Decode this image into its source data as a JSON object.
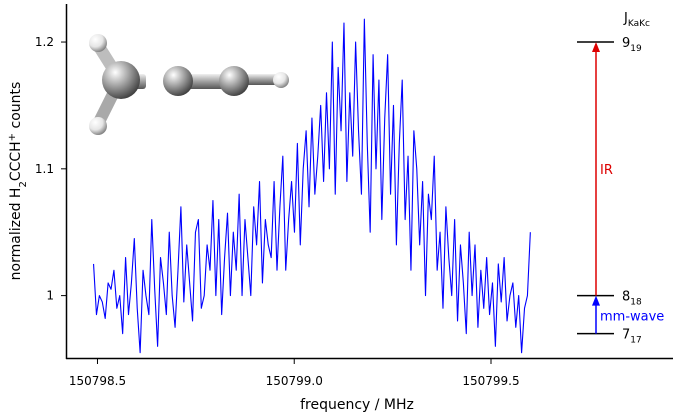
{
  "chart_data": {
    "type": "line",
    "xlabel": "frequency / MHz",
    "ylabel_parts": {
      "pre": "normalized H",
      "sub": "2",
      "mid": "CCCH",
      "sup": "+",
      "post": " counts"
    },
    "xlim": [
      150798.42,
      150799.96
    ],
    "ylim": [
      0.95,
      1.23
    ],
    "xticks": [
      {
        "value": 150798.5,
        "label": "150798.5"
      },
      {
        "value": 150799.0,
        "label": "150799.0"
      },
      {
        "value": 150799.5,
        "label": "150799.5"
      }
    ],
    "yticks": [
      {
        "value": 1.0,
        "label": "1"
      },
      {
        "value": 1.1,
        "label": "1.1"
      },
      {
        "value": 1.2,
        "label": "1.2"
      }
    ],
    "series": [
      {
        "color": "#0000ff",
        "x_start": 150798.49,
        "x_end": 150799.6,
        "values": [
          1.025,
          0.985,
          1.0,
          0.995,
          0.982,
          1.01,
          1.005,
          1.02,
          0.99,
          1.0,
          0.97,
          1.03,
          0.985,
          1.01,
          1.045,
          0.99,
          0.955,
          1.02,
          1.0,
          0.985,
          1.06,
          1.005,
          0.96,
          1.03,
          1.01,
          0.985,
          1.05,
          1.0,
          0.975,
          1.02,
          1.07,
          0.995,
          1.04,
          1.01,
          0.98,
          1.05,
          1.06,
          0.99,
          1.0,
          1.04,
          1.02,
          1.075,
          1.0,
          1.06,
          0.985,
          1.03,
          1.065,
          1.0,
          1.05,
          1.02,
          1.08,
          1.0,
          1.06,
          1.03,
          1.0,
          1.07,
          1.04,
          1.09,
          1.01,
          1.06,
          1.04,
          1.03,
          1.09,
          1.02,
          1.07,
          1.11,
          1.02,
          1.06,
          1.09,
          1.05,
          1.12,
          1.04,
          1.1,
          1.13,
          1.07,
          1.14,
          1.08,
          1.11,
          1.15,
          1.09,
          1.16,
          1.1,
          1.2,
          1.08,
          1.18,
          1.13,
          1.215,
          1.09,
          1.16,
          1.11,
          1.2,
          1.13,
          1.08,
          1.218,
          1.12,
          1.05,
          1.19,
          1.1,
          1.17,
          1.06,
          1.14,
          1.19,
          1.08,
          1.15,
          1.04,
          1.12,
          1.17,
          1.06,
          1.11,
          1.02,
          1.13,
          1.1,
          1.04,
          1.09,
          1.0,
          1.08,
          1.06,
          1.11,
          1.02,
          1.05,
          0.99,
          1.07,
          1.03,
          1.0,
          1.06,
          0.98,
          1.04,
          1.01,
          0.97,
          1.05,
          1.0,
          1.04,
          0.975,
          1.02,
          0.99,
          1.03,
          0.985,
          1.01,
          0.96,
          1.025,
          0.995,
          1.03,
          0.98,
          1.0,
          1.01,
          0.975,
          1.0,
          0.955,
          0.99,
          1.0,
          1.05
        ]
      }
    ],
    "levels": {
      "header": {
        "main": "J",
        "sub": "KaKc"
      },
      "lines": [
        {
          "value": 1.2,
          "main": "9",
          "sub": "19"
        },
        {
          "value": 1.0,
          "main": "8",
          "sub": "18"
        },
        {
          "value": 0.97,
          "main": "7",
          "sub": "17"
        }
      ],
      "arrows": [
        {
          "from": 1.0,
          "to": 1.2,
          "label": "IR",
          "color": "#dd0000"
        },
        {
          "from": 0.97,
          "to": 1.0,
          "label": "mm-wave",
          "color": "#0000ff"
        }
      ]
    }
  }
}
